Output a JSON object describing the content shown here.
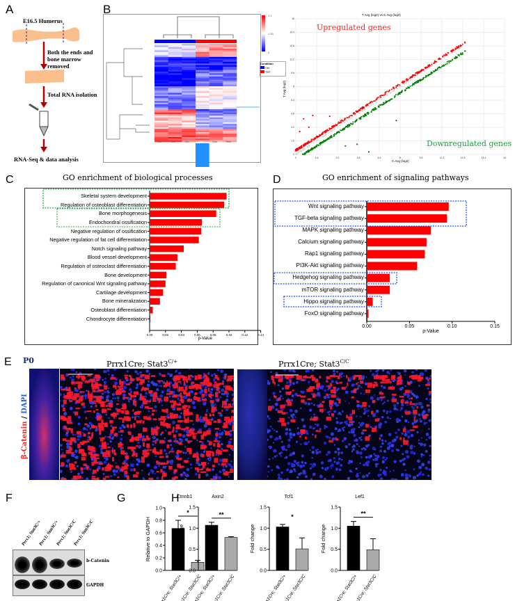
{
  "panels": {
    "A": "A",
    "B": "B",
    "C": "C",
    "D": "D",
    "E": "E",
    "F": "F",
    "G": "G",
    "H": "H"
  },
  "flow": {
    "sample": "E16.5 Humerus",
    "step1": "Both the ends and bone marrow removed",
    "step2": "Total RNA isolation",
    "step3": "RNA-Seq & data analysis"
  },
  "heatmap": {
    "scale_max": "3.1",
    "scale_mid": "1.55",
    "scale_min": "0",
    "legend_title": "Condition",
    "legend_items": [
      {
        "label": "Ctrl",
        "color": "#0000ff"
      },
      {
        "label": "TRT",
        "color": "#ff0000"
      }
    ],
    "columns": [
      "Ctrl",
      "Ctrl",
      "Ctrl",
      "Test",
      "Test",
      "Test"
    ],
    "colors": {
      "low": "#0000ff",
      "mid": "#ffffff",
      "high": "#ff0000",
      "selection": "#1e90ff"
    }
  },
  "scatter": {
    "title": "T Avg (log2) vs C Avg (log2)",
    "xlabel": "C Avg (log2)",
    "ylabel": "T Avg (log2)",
    "up_label": "Upregulated genes",
    "down_label": "Downregulated genes",
    "xticks": [
      "0",
      "1.6",
      "3.2",
      "4.8",
      "6.4",
      "8",
      "9.6",
      "11.2",
      "12.8",
      "14.4",
      "16"
    ],
    "yticks": [
      "0",
      "1.6",
      "3.2",
      "4.8",
      "6.4",
      "8",
      "9.6",
      "11.2",
      "12.8",
      "14.4",
      "16"
    ],
    "colors": {
      "up": "#ff0000",
      "down": "#008000",
      "ns": "#d3d3d3"
    }
  },
  "chart_data": [
    {
      "id": "C",
      "type": "bar",
      "orientation": "horizontal",
      "title": "GO enrichment of biological processes",
      "xlabel": "p-Value",
      "xlim": [
        0,
        0.14
      ],
      "xticks": [
        "0.00",
        "0.02",
        "0.04",
        "0.06",
        "0.08",
        "0.10",
        "0.12",
        "0.14"
      ],
      "categories": [
        "Skeletal system development",
        "Regulation of osteoblast differentiation",
        "Bone morphogenesis",
        "Endochondral ossification",
        "Negative regulation of ossification",
        "Negative regulation of fat cell differentiation",
        "Notch signaling pathway",
        "Blood vessel development",
        "Regulation of osteoclast differentiation",
        "Bone development",
        "Regulation of canonical Wnt signaling pathway",
        "Cartilage development",
        "Bone mineralization",
        "Osteoblast differentiation",
        "Chondrocyte differentiation"
      ],
      "values": [
        0.097,
        0.094,
        0.084,
        0.066,
        0.065,
        0.062,
        0.043,
        0.035,
        0.033,
        0.021,
        0.02,
        0.017,
        0.013,
        0.004,
        0.001
      ],
      "bar_color": "#ff0000",
      "highlight_color": "#22aa44"
    },
    {
      "id": "D",
      "type": "bar",
      "orientation": "horizontal",
      "title": "GO enrichment of signaling pathways",
      "xlabel": "p-Value",
      "xlim": [
        0,
        0.15
      ],
      "xticks": [
        "0.00",
        "0.05",
        "0.10",
        "0.15"
      ],
      "categories": [
        "Wnt signaling pathway",
        "TGF-beta signaling pathway",
        "MAPK signaling pathway",
        "Calcium signaling pathway",
        "Rap1 signaling pathway",
        "PI3K-Akt signaling pathway",
        "Hedgehog signaling pathway",
        "mTOR signaling pathway",
        "Hippo signaling pathway",
        "FoxO signaling pathway"
      ],
      "values": [
        0.096,
        0.094,
        0.075,
        0.07,
        0.068,
        0.059,
        0.027,
        0.027,
        0.007,
        0.002
      ],
      "bar_color": "#ff0000",
      "highlight_color": "#1f4fff"
    },
    {
      "id": "G",
      "type": "bar",
      "title": "Ctnnb1",
      "ylabel": "Relative to GAPDH",
      "ylim": [
        0,
        1.0
      ],
      "yticks": [
        "0.0",
        "0.2",
        "0.4",
        "0.6",
        "0.8",
        "1.0"
      ],
      "categories": [
        "Prrx1Cre; Stat3C/+",
        "Prrx1Cre; Stat3C/C"
      ],
      "values": [
        0.67,
        0.13
      ],
      "errors": [
        0.13,
        0.03
      ],
      "significance": "*",
      "colors": [
        "#000000",
        "#aaaaaa"
      ]
    },
    {
      "id": "H1",
      "type": "bar",
      "title": "Axin2",
      "ylabel": "Fold change",
      "ylim": [
        0,
        1.5
      ],
      "yticks": [
        "0.0",
        "0.5",
        "1.0",
        "1.5"
      ],
      "categories": [
        "Prrx1Cre; Stat3C/+",
        "Prrx1Cre; Stat3C/C"
      ],
      "values": [
        1.07,
        0.78
      ],
      "errors": [
        0.07,
        0.02
      ],
      "significance": "**",
      "colors": [
        "#000000",
        "#aaaaaa"
      ]
    },
    {
      "id": "H2",
      "type": "bar",
      "title": "Tcf1",
      "ylabel": "Fold change",
      "ylim": [
        0,
        1.5
      ],
      "yticks": [
        "0.0",
        "0.5",
        "1.0",
        "1.5"
      ],
      "categories": [
        "Prrx1Cre; Stat3C/+",
        "Prrx1Cre; Stat3C/C"
      ],
      "values": [
        1.03,
        0.51
      ],
      "errors": [
        0.06,
        0.26
      ],
      "significance": "*",
      "colors": [
        "#000000",
        "#aaaaaa"
      ]
    },
    {
      "id": "H3",
      "type": "bar",
      "title": "Lef1",
      "ylabel": "Fold change",
      "ylim": [
        0,
        1.5
      ],
      "yticks": [
        "0.0",
        "0.5",
        "1.0",
        "1.5"
      ],
      "categories": [
        "Prrx1Cre; Stat3C/+",
        "Prrx1Cre; Stat3C/C"
      ],
      "values": [
        1.05,
        0.49
      ],
      "errors": [
        0.11,
        0.26
      ],
      "significance": "**",
      "colors": [
        "#000000",
        "#aaaaaa"
      ]
    }
  ],
  "panelE": {
    "age": "P0",
    "title_left": "Prrx1Cre; Stat3",
    "title_left_sup": "C/+",
    "title_right": "Prrx1Cre; Stat3",
    "title_right_sup": "C/C",
    "stain_red": "β-Catenin",
    "stain_sep": " / ",
    "stain_blue": "DAPI"
  },
  "panelF": {
    "lanes": [
      "Prrx1; Stat3C/+",
      "Prrx1; Stat3C/+",
      "Prrx1; Stat3C/C",
      "Prrx1; Stat3C/C"
    ],
    "bands": [
      "b-Catenin",
      "GAPDH"
    ],
    "intensity_bcatenin": [
      1.0,
      1.0,
      0.55,
      0.45
    ],
    "intensity_gapdh": [
      1.0,
      1.0,
      1.0,
      1.0
    ]
  }
}
